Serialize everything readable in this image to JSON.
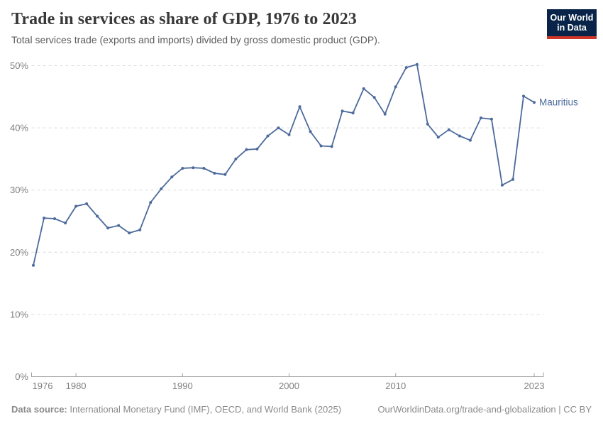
{
  "header": {
    "title": "Trade in services as share of GDP, 1976 to 2023",
    "subtitle": "Total services trade (exports and imports) divided by gross domestic product (GDP)."
  },
  "logo": {
    "line1": "Our World",
    "line2": "in Data",
    "bg_color": "#092448",
    "accent_color": "#cf3529"
  },
  "chart_data": {
    "type": "line",
    "title": "Trade in services as share of GDP, 1976 to 2023",
    "xlabel": "",
    "ylabel": "",
    "xlim": [
      1976,
      2023
    ],
    "ylim": [
      0,
      50
    ],
    "grid": "horizontal-dashed",
    "legend_position": "end-of-line-label",
    "line_color": "#4c6a9c",
    "gridline_color": "#dcdcdc",
    "axis_color": "#a3a3a3",
    "tick_text_color": "#7f7f7f",
    "x_ticks": [
      {
        "label": "1976",
        "year": 1976,
        "align": "start"
      },
      {
        "label": "1980",
        "year": 1980,
        "align": "middle"
      },
      {
        "label": "1990",
        "year": 1990,
        "align": "middle"
      },
      {
        "label": "2000",
        "year": 2000,
        "align": "middle"
      },
      {
        "label": "2010",
        "year": 2010,
        "align": "middle"
      },
      {
        "label": "2023",
        "year": 2023,
        "align": "middle"
      }
    ],
    "y_ticks": [
      {
        "label": "0%",
        "value": 0
      },
      {
        "label": "10%",
        "value": 10
      },
      {
        "label": "20%",
        "value": 20
      },
      {
        "label": "30%",
        "value": 30
      },
      {
        "label": "40%",
        "value": 40
      },
      {
        "label": "50%",
        "value": 50
      }
    ],
    "series": [
      {
        "name": "Mauritius",
        "color": "#4c6a9c",
        "x": [
          1976,
          1977,
          1978,
          1979,
          1980,
          1981,
          1982,
          1983,
          1984,
          1985,
          1986,
          1987,
          1988,
          1989,
          1990,
          1991,
          1992,
          1993,
          1994,
          1995,
          1996,
          1997,
          1998,
          1999,
          2000,
          2001,
          2002,
          2003,
          2004,
          2005,
          2006,
          2007,
          2008,
          2009,
          2010,
          2011,
          2012,
          2013,
          2014,
          2015,
          2016,
          2017,
          2018,
          2019,
          2020,
          2021,
          2022,
          2023
        ],
        "values": [
          17.9,
          25.5,
          25.4,
          24.7,
          27.4,
          27.8,
          25.8,
          23.9,
          24.3,
          23.1,
          23.6,
          28.0,
          30.2,
          32.1,
          33.5,
          33.6,
          33.5,
          32.7,
          32.5,
          35.0,
          36.5,
          36.6,
          38.7,
          40.0,
          38.9,
          43.4,
          39.4,
          37.1,
          37.0,
          42.7,
          42.4,
          46.3,
          44.9,
          42.2,
          46.6,
          49.7,
          50.2,
          40.6,
          38.5,
          39.7,
          38.7,
          38.0,
          41.6,
          41.4,
          30.8,
          31.7,
          45.1,
          44.1
        ]
      }
    ]
  },
  "footer": {
    "source_label": "Data source:",
    "source_text": " International Monetary Fund (IMF), OECD, and World Bank (2025)",
    "credit": "OurWorldinData.org/trade-and-globalization | CC BY"
  }
}
